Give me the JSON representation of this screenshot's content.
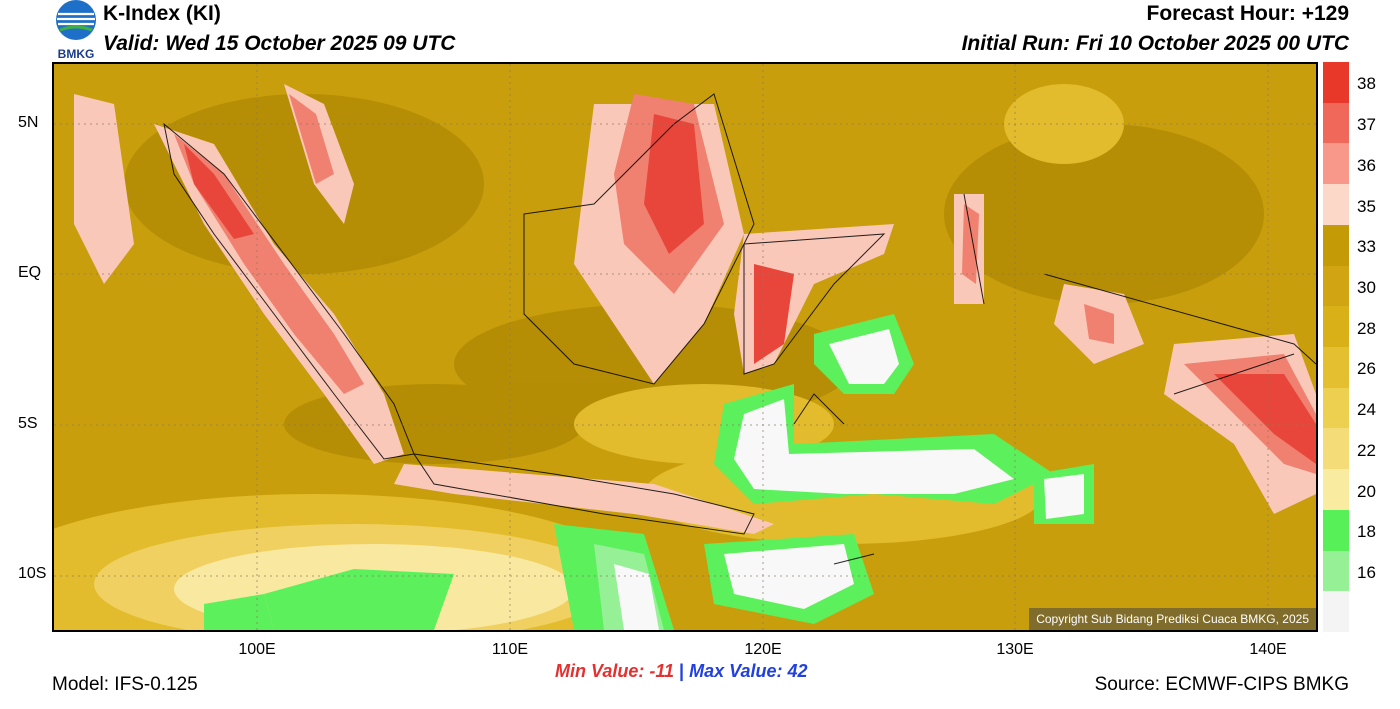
{
  "header": {
    "title": "K-Index (KI)",
    "valid": "Valid: Wed 15 October 2025 09 UTC",
    "forecast_hour": "Forecast Hour: +129",
    "initial_run": "Initial Run: Fri 10 October 2025 00 UTC",
    "logo_text": "BMKG"
  },
  "map": {
    "lat_ticks": [
      "5N",
      "EQ",
      "5S",
      "10S"
    ],
    "lon_ticks": [
      "100E",
      "110E",
      "120E",
      "130E",
      "140E"
    ],
    "copyright": "Copyright Sub Bidang Prediksi Cuaca BMKG, 2025"
  },
  "colorbar": {
    "labels": [
      "38",
      "37",
      "36",
      "35",
      "33",
      "30",
      "28",
      "26",
      "24",
      "22",
      "20",
      "18",
      "16"
    ],
    "colors": [
      "#e8382a",
      "#f0685a",
      "#f8988a",
      "#fcd8c8",
      "#c49a06",
      "#d0a412",
      "#dab018",
      "#e4c030",
      "#eed050",
      "#f4dc78",
      "#f9eca0",
      "#58f058",
      "#96f096",
      "#f4f4f4"
    ]
  },
  "stats": {
    "min_label": "Min Value: -11",
    "separator": "|",
    "max_label": "Max Value:  42"
  },
  "footer": {
    "model": "Model: IFS-0.125",
    "source": "Source: ECMWF-CIPS BMKG"
  },
  "colors": {
    "base": "#c89e0c",
    "dark": "#b48c04",
    "light": "#e2bc2c",
    "pale": "#f8e8a0",
    "pink": "#f9c8b8",
    "red": "#e8463a",
    "green": "#5cf05c",
    "white": "#f8f8f8"
  }
}
